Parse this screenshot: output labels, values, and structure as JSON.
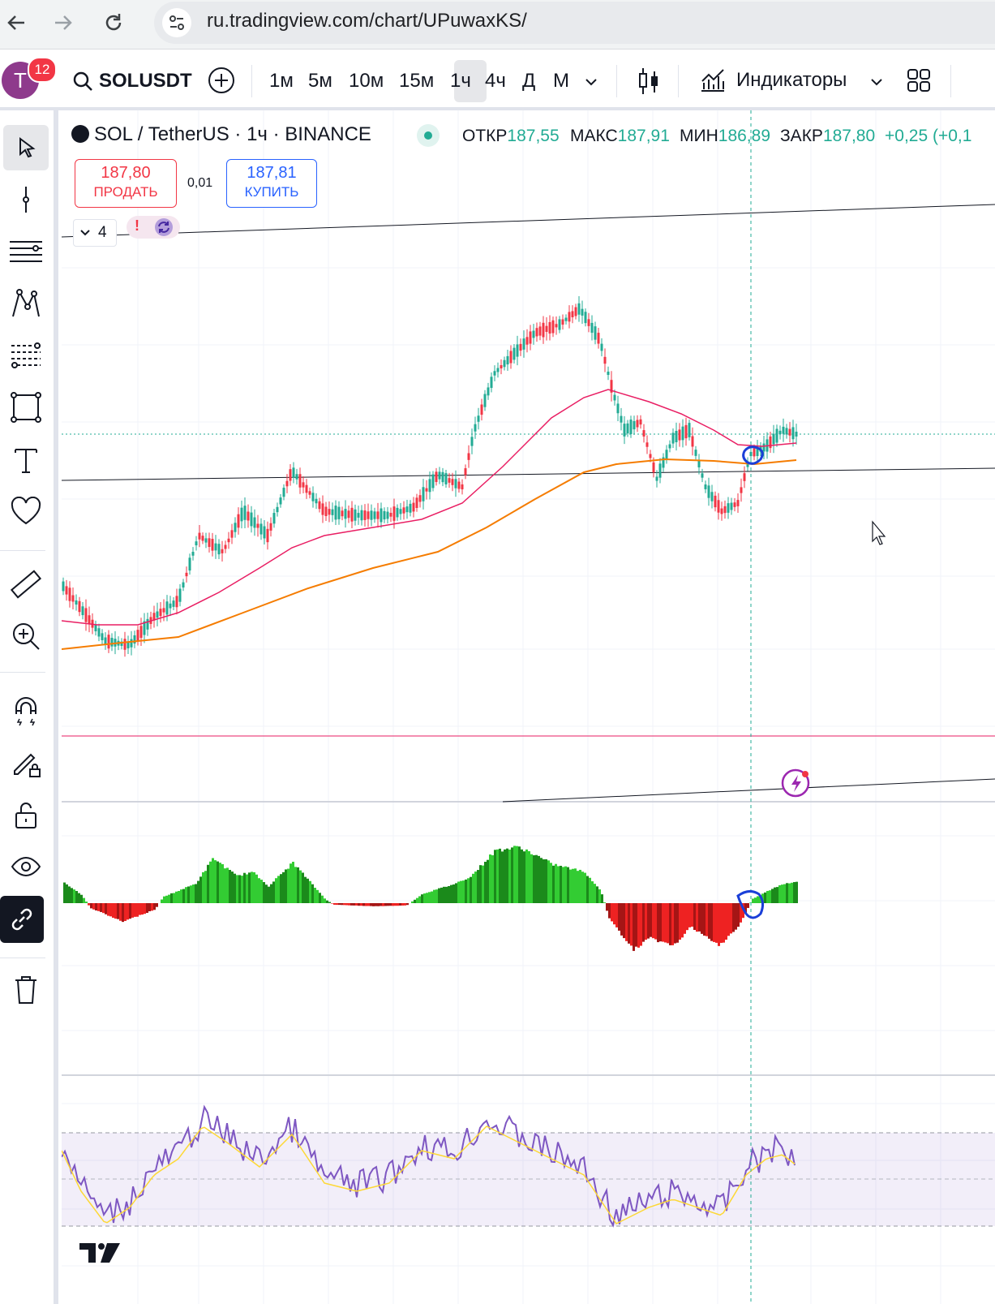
{
  "browser": {
    "url": "ru.tradingview.com/chart/UPuwaxKS/"
  },
  "topbar": {
    "avatar_letter": "T",
    "notification_count": "12",
    "symbol": "SOLUSDT",
    "timeframes": [
      "1м",
      "5м",
      "10м",
      "15м",
      "1ч",
      "4ч",
      "Д",
      "М"
    ],
    "active_timeframe": "1ч",
    "indicators_label": "Индикаторы"
  },
  "legend": {
    "title": "SOL / TetherUS · 1ч · BINANCE",
    "open_label": "ОТКР",
    "open": "187,55",
    "high_label": "МАКС",
    "high": "187,91",
    "low_label": "МИН",
    "low": "186,89",
    "close_label": "ЗАКР",
    "close": "187,80",
    "change": "+0,25 (+0,1"
  },
  "trade": {
    "sell_price": "187,80",
    "sell_label": "ПРОДАТЬ",
    "spread": "0,01",
    "buy_price": "187,81",
    "buy_label": "КУПИТЬ"
  },
  "indicators_collapse": {
    "count": "4",
    "alert_glyph": "!"
  },
  "left_tools": [
    "cursor-icon",
    "crosshair-line-icon",
    "trend-lines-icon",
    "pattern-icon",
    "fib-icon",
    "rectangle-icon",
    "text-icon",
    "heart-icon",
    "ruler-icon",
    "zoom-in-icon",
    "magnet-icon",
    "pencil-lock-icon",
    "lock-icon",
    "eye-icon",
    "link-icon",
    "trash-icon"
  ],
  "colors": {
    "up": "#22ab94",
    "down": "#f23645",
    "ma_fast": "#e91e63",
    "ma_slow": "#f57c00",
    "hist_up": "#33cc33",
    "hist_down": "#ee2222",
    "rsi": "#7e57c2",
    "rsi_ma": "#fdd835",
    "accent": "#2962ff"
  }
}
